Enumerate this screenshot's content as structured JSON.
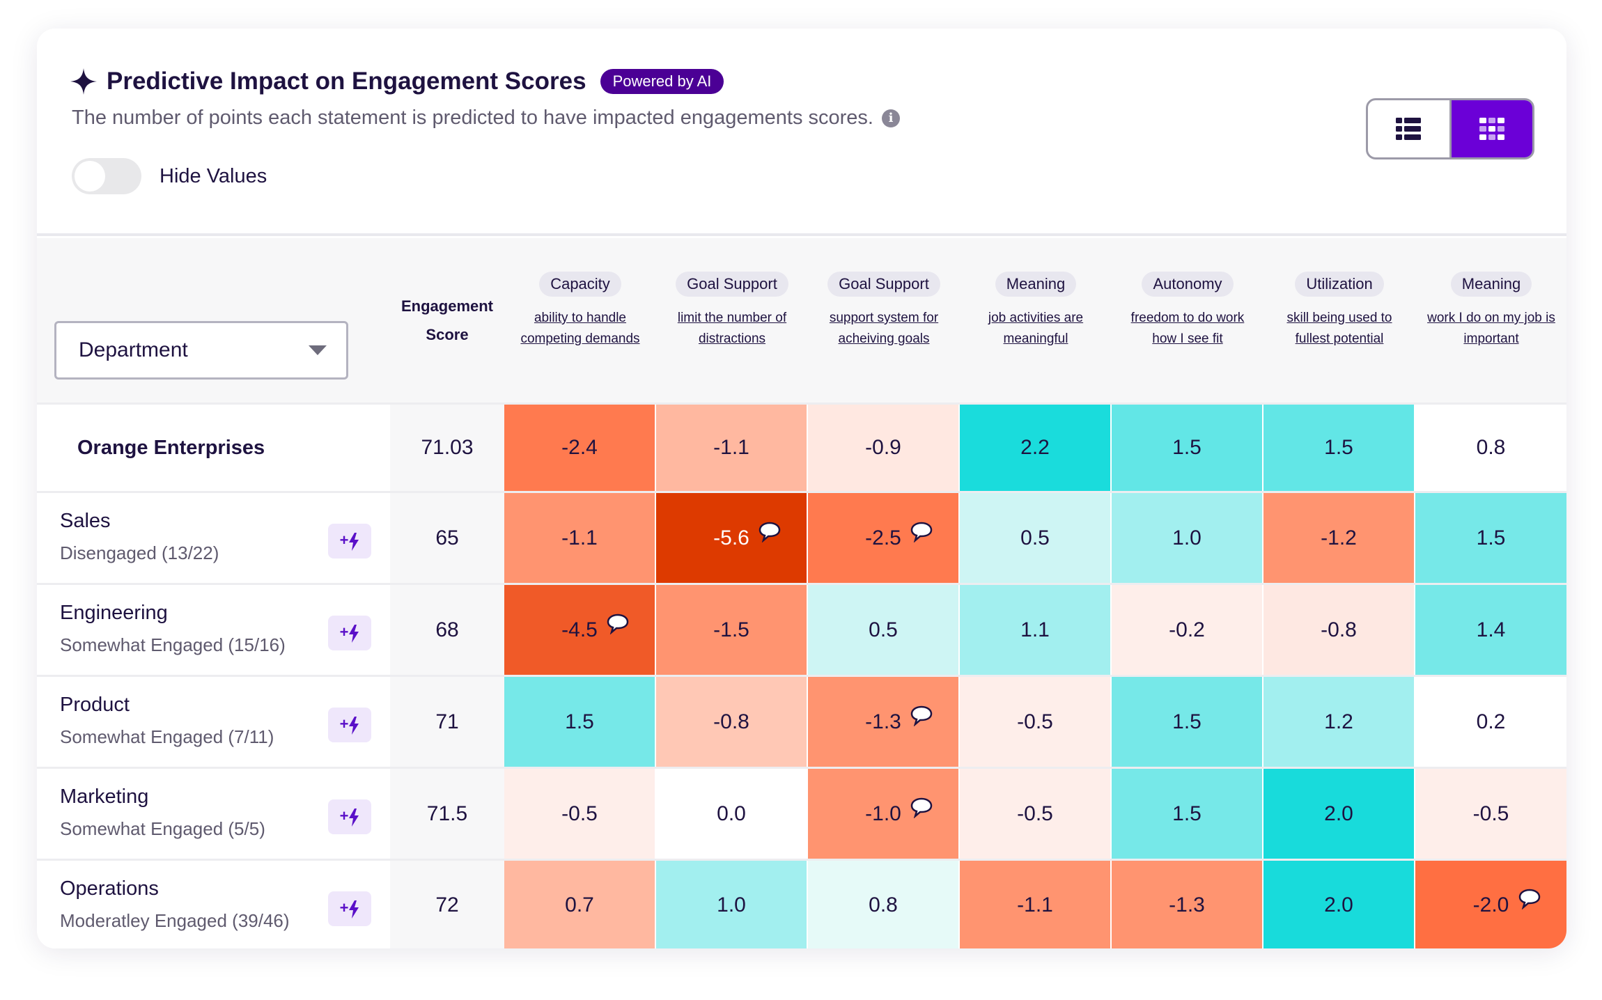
{
  "header": {
    "title": "Predictive Impact on Engagement Scores",
    "badge": "Powered by AI",
    "description": "The number of points each statement is predicted to have impacted engagements scores.",
    "hide_values_label": "Hide Values",
    "hide_values_on": false,
    "view_options": [
      {
        "icon": "list-view-icon",
        "active": false
      },
      {
        "icon": "heatmap-grid-icon",
        "active": true
      }
    ]
  },
  "colors": {
    "brand": "#6B00D7",
    "badge": "#4B0095",
    "text": "#1E1240"
  },
  "filter": {
    "selected": "Department"
  },
  "score_header": "Engagement Score",
  "columns": [
    {
      "category": "Capacity",
      "statement": "ability to handle competing demands"
    },
    {
      "category": "Goal Support",
      "statement": "limit the number of distractions"
    },
    {
      "category": "Goal Support",
      "statement": "support system for acheiving goals"
    },
    {
      "category": "Meaning",
      "statement": "job activities are meaningful"
    },
    {
      "category": "Autonomy",
      "statement": "freedom to do work how I see fit"
    },
    {
      "category": "Utilization",
      "statement": "skill being used to fullest potential"
    },
    {
      "category": "Meaning",
      "statement": "work I do on my job is important"
    }
  ],
  "organization": {
    "name": "Orange Enterprises",
    "score": "71.03",
    "cells": [
      {
        "v": "-2.4",
        "c": "#FF7A4F"
      },
      {
        "v": "-1.1",
        "c": "#FFB8A0"
      },
      {
        "v": "-0.9",
        "c": "#FFE8E1"
      },
      {
        "v": "2.2",
        "c": "#1ADCDC"
      },
      {
        "v": "1.5",
        "c": "#62E6E6"
      },
      {
        "v": "1.5",
        "c": "#62E6E6"
      },
      {
        "v": "0.8",
        "c": "#FFFFFF"
      }
    ]
  },
  "departments": [
    {
      "name": "Sales",
      "status": "Disengaged (13/22)",
      "score": "65",
      "cells": [
        {
          "v": "-1.1",
          "c": "#FF9470"
        },
        {
          "v": "-5.6",
          "c": "#DD3A00",
          "light": true,
          "comment": true
        },
        {
          "v": "-2.5",
          "c": "#FF7A4F",
          "comment": true
        },
        {
          "v": "0.5",
          "c": "#CEF5F4"
        },
        {
          "v": "1.0",
          "c": "#A2EFEF"
        },
        {
          "v": "-1.2",
          "c": "#FF9470"
        },
        {
          "v": "1.5",
          "c": "#76E8E8"
        }
      ]
    },
    {
      "name": "Engineering",
      "status": "Somewhat Engaged (15/16)",
      "score": "68",
      "cells": [
        {
          "v": "-4.5",
          "c": "#F05A28",
          "comment": true
        },
        {
          "v": "-1.5",
          "c": "#FF9470"
        },
        {
          "v": "0.5",
          "c": "#CEF5F4"
        },
        {
          "v": "1.1",
          "c": "#A2EFEF"
        },
        {
          "v": "-0.2",
          "c": "#FEEEEA"
        },
        {
          "v": "-0.8",
          "c": "#FEE8E2"
        },
        {
          "v": "1.4",
          "c": "#76E8E8"
        }
      ]
    },
    {
      "name": "Product",
      "status": "Somewhat Engaged (7/11)",
      "score": "71",
      "cells": [
        {
          "v": "1.5",
          "c": "#76E8E8"
        },
        {
          "v": "-0.8",
          "c": "#FFC8B5"
        },
        {
          "v": "-1.3",
          "c": "#FF9470",
          "comment": true
        },
        {
          "v": "-0.5",
          "c": "#FEEEEA"
        },
        {
          "v": "1.5",
          "c": "#76E8E8"
        },
        {
          "v": "1.2",
          "c": "#A2EFEF"
        },
        {
          "v": "0.2",
          "c": "#FFFFFF"
        }
      ]
    },
    {
      "name": "Marketing",
      "status": "Somewhat Engaged (5/5)",
      "score": "71.5",
      "cells": [
        {
          "v": "-0.5",
          "c": "#FEEEEA"
        },
        {
          "v": "0.0",
          "c": "#FFFFFF"
        },
        {
          "v": "-1.0",
          "c": "#FF9470",
          "comment": true
        },
        {
          "v": "-0.5",
          "c": "#FEEEEA"
        },
        {
          "v": "1.5",
          "c": "#76E8E8"
        },
        {
          "v": "2.0",
          "c": "#18DBDB"
        },
        {
          "v": "-0.5",
          "c": "#FEEEEA"
        }
      ]
    },
    {
      "name": "Operations",
      "status": "Moderatley Engaged (39/46)",
      "score": "72",
      "cells": [
        {
          "v": "0.7",
          "c": "#FFB8A0"
        },
        {
          "v": "1.0",
          "c": "#A2EFEF"
        },
        {
          "v": "0.8",
          "c": "#E6FAF8"
        },
        {
          "v": "-1.1",
          "c": "#FF9470"
        },
        {
          "v": "-1.3",
          "c": "#FF9470"
        },
        {
          "v": "2.0",
          "c": "#18DBDB"
        },
        {
          "v": "-2.0",
          "c": "#FF6F42",
          "comment": true
        }
      ]
    }
  ]
}
